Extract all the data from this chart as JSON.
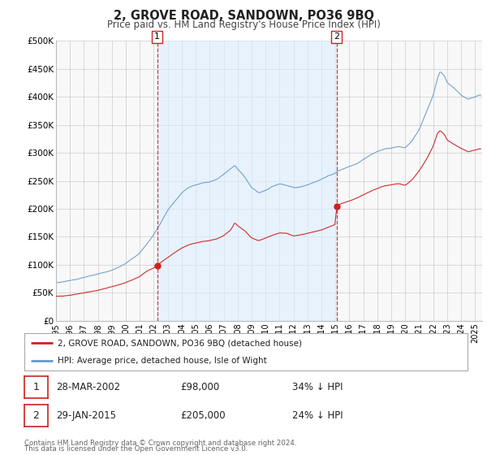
{
  "title": "2, GROVE ROAD, SANDOWN, PO36 9BQ",
  "subtitle": "Price paid vs. HM Land Registry's House Price Index (HPI)",
  "ylim": [
    0,
    500000
  ],
  "xlim_start": 1995.0,
  "xlim_end": 2025.5,
  "yticks": [
    0,
    50000,
    100000,
    150000,
    200000,
    250000,
    300000,
    350000,
    400000,
    450000,
    500000
  ],
  "ytick_labels": [
    "£0",
    "£50K",
    "£100K",
    "£150K",
    "£200K",
    "£250K",
    "£300K",
    "£350K",
    "£400K",
    "£450K",
    "£500K"
  ],
  "xticks": [
    1995,
    1996,
    1997,
    1998,
    1999,
    2000,
    2001,
    2002,
    2003,
    2004,
    2005,
    2006,
    2007,
    2008,
    2009,
    2010,
    2011,
    2012,
    2013,
    2014,
    2015,
    2016,
    2017,
    2018,
    2019,
    2020,
    2021,
    2022,
    2023,
    2024,
    2025
  ],
  "background_color": "#ffffff",
  "plot_bg_color": "#f8f8f8",
  "grid_color": "#cccccc",
  "hpi_color": "#6699cc",
  "hpi_fill_color": "#ddeeff",
  "price_color": "#cc2222",
  "vline_color": "#cc2222",
  "shade_color": "#ddeeff",
  "transaction1": {
    "date": 2002.24,
    "price": 98000,
    "label": "1"
  },
  "transaction2": {
    "date": 2015.08,
    "price": 205000,
    "label": "2"
  },
  "legend1_label": "2, GROVE ROAD, SANDOWN, PO36 9BQ (detached house)",
  "legend2_label": "HPI: Average price, detached house, Isle of Wight",
  "footer1": "Contains HM Land Registry data © Crown copyright and database right 2024.",
  "footer2": "This data is licensed under the Open Government Licence v3.0."
}
